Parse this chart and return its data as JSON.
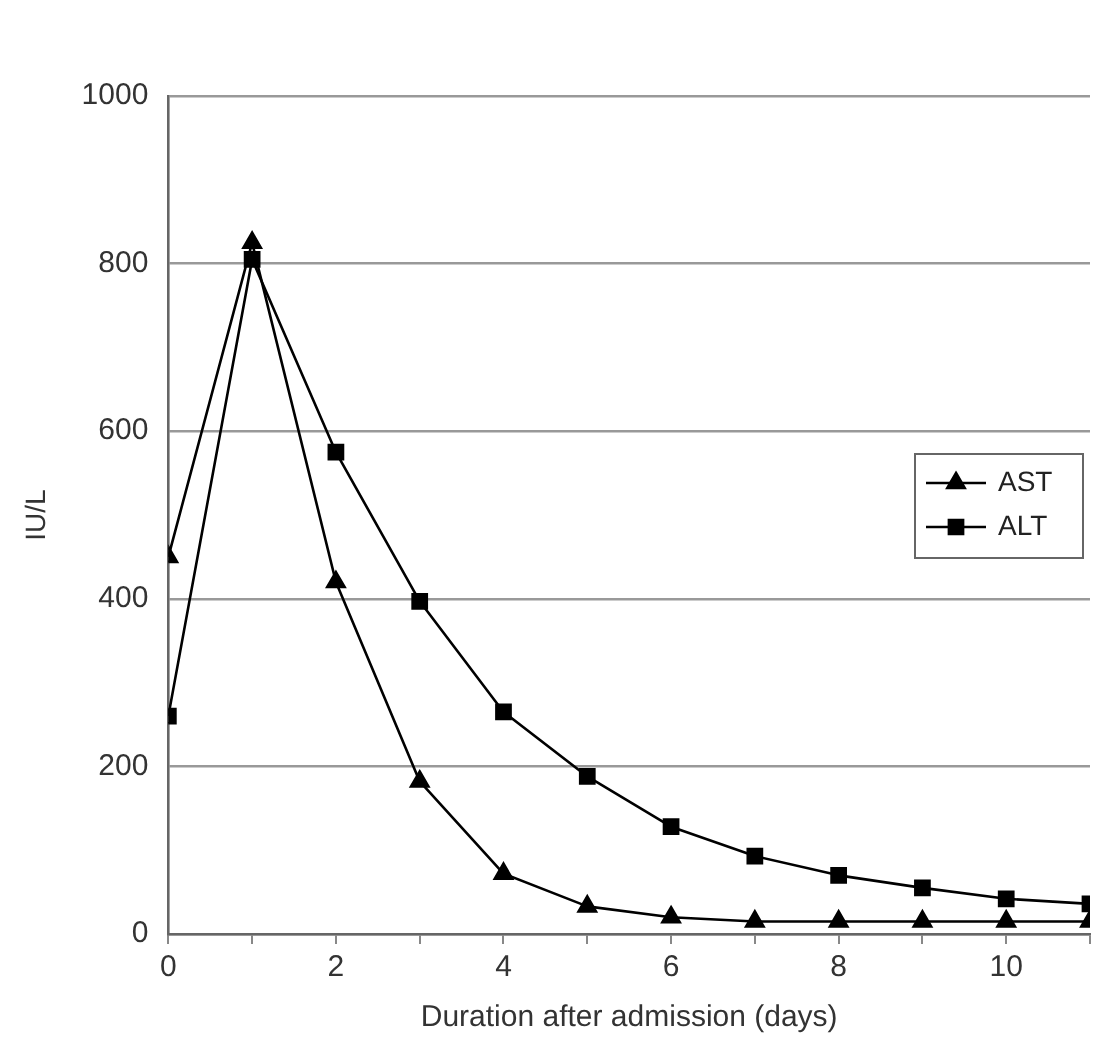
{
  "chart_data": {
    "type": "line",
    "xlabel": "Duration after admission (days)",
    "ylabel": "IU/L",
    "x": [
      0,
      1,
      2,
      3,
      4,
      5,
      6,
      7,
      8,
      9,
      10,
      11
    ],
    "series": [
      {
        "name": "AST",
        "color": "#000000",
        "marker": "triangle",
        "values": [
          450,
          825,
          420,
          182,
          72,
          33,
          20,
          15,
          15,
          15,
          15,
          15
        ]
      },
      {
        "name": "ALT",
        "color": "#000000",
        "marker": "square",
        "values": [
          260,
          805,
          575,
          397,
          265,
          188,
          128,
          93,
          70,
          55,
          42,
          36
        ]
      }
    ],
    "xlim": [
      0,
      11
    ],
    "xticks": [
      0,
      {
        "value": 1,
        "label": null
      },
      2,
      {
        "value": 3,
        "label": null
      },
      4,
      {
        "value": 5,
        "label": null
      },
      6,
      {
        "value": 7,
        "label": null
      },
      8,
      {
        "value": 9,
        "label": null
      },
      10,
      {
        "value": 11,
        "label": null
      }
    ],
    "ylim": [
      0,
      1000
    ],
    "yticks": [
      0,
      200,
      400,
      600,
      800,
      1000
    ],
    "grid": "y",
    "legend": "right",
    "line_style": "solid"
  }
}
